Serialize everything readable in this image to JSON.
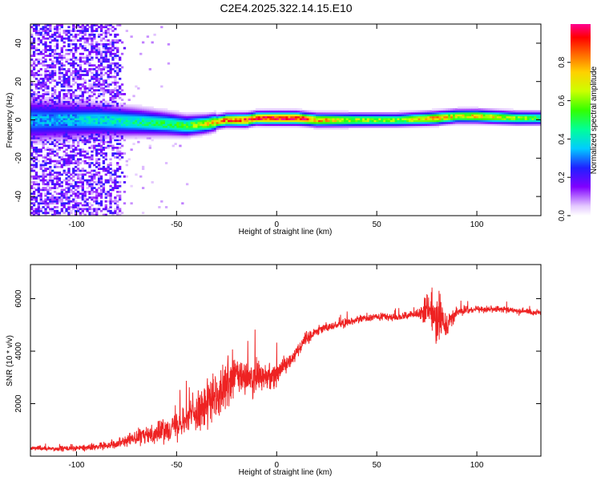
{
  "chart_data": [
    {
      "type": "heatmap",
      "title": "C2E4.2025.322.14.15.E10",
      "xlabel": "Height of straight line (km)",
      "ylabel": "Frequency (Hz)",
      "xlim": [
        -123,
        132
      ],
      "ylim": [
        -50,
        50
      ],
      "xticks": [
        -100,
        -50,
        0,
        50,
        100
      ],
      "xtick_labels": [
        "-100",
        "-50",
        "0",
        "50",
        "100"
      ],
      "yticks": [
        -40,
        -20,
        0,
        20,
        40
      ],
      "ytick_labels": [
        "-40",
        "-20",
        "0",
        "20",
        "40"
      ],
      "colorbar": {
        "label": "Normalized spectral amplitude",
        "range": [
          0,
          1
        ],
        "ticks": [
          0,
          0.2,
          0.4,
          0.6,
          0.8
        ],
        "tick_labels": [
          "0.0",
          "0.2",
          "0.4",
          "0.6",
          "0.8"
        ]
      },
      "ridge": {
        "description": "Strong signal centered near 0 Hz",
        "height_km": [
          -110,
          -90,
          -70,
          -55,
          -45,
          -35,
          -25,
          -15,
          -10,
          -5,
          0,
          10,
          20,
          40,
          60,
          80,
          90,
          100,
          120,
          132
        ],
        "center_hz": [
          0,
          0,
          -1,
          -2,
          -3,
          -2,
          0,
          0,
          1,
          1,
          1,
          1,
          0,
          0,
          0,
          1,
          2,
          2,
          1,
          1
        ],
        "peak_amplitude": [
          0.35,
          0.4,
          0.45,
          0.5,
          0.55,
          0.7,
          0.85,
          0.95,
          0.9,
          1.0,
          1.0,
          1.0,
          0.8,
          0.65,
          0.6,
          0.8,
          0.7,
          0.75,
          0.6,
          0.55
        ]
      },
      "noise_region": {
        "height_km": [
          -123,
          -80
        ],
        "amplitude_range": [
          0.05,
          0.25
        ]
      }
    },
    {
      "type": "line",
      "xlabel": "Height of straight line (km)",
      "ylabel": "SNR (10 * v/v)",
      "xlim": [
        -123,
        132
      ],
      "ylim": [
        0,
        7300
      ],
      "xticks": [
        -100,
        -50,
        0,
        50,
        100
      ],
      "xtick_labels": [
        "-100",
        "-50",
        "0",
        "50",
        "100"
      ],
      "yticks": [
        2000,
        4000,
        6000
      ],
      "ytick_labels": [
        "2000",
        "4000",
        "6000"
      ],
      "color": "#ee2222",
      "series": [
        {
          "name": "SNR",
          "x": [
            -123,
            -110,
            -100,
            -90,
            -80,
            -70,
            -60,
            -50,
            -40,
            -30,
            -25,
            -20,
            -15,
            -10,
            -5,
            0,
            5,
            10,
            15,
            20,
            30,
            40,
            50,
            60,
            70,
            75,
            80,
            85,
            90,
            100,
            110,
            120,
            132
          ],
          "y": [
            300,
            280,
            300,
            350,
            500,
            700,
            900,
            1200,
            1700,
            2200,
            2700,
            3100,
            2900,
            3000,
            3000,
            3200,
            3500,
            4000,
            4500,
            4800,
            5000,
            5200,
            5300,
            5300,
            5400,
            5500,
            5400,
            5000,
            5500,
            5600,
            5600,
            5550,
            5450
          ],
          "spread": [
            150,
            150,
            160,
            180,
            250,
            450,
            600,
            750,
            1100,
            1400,
            1500,
            1300,
            1100,
            1000,
            800,
            800,
            500,
            400,
            350,
            300,
            250,
            250,
            250,
            200,
            200,
            1000,
            1600,
            700,
            250,
            200,
            180,
            180,
            180
          ]
        }
      ]
    }
  ]
}
